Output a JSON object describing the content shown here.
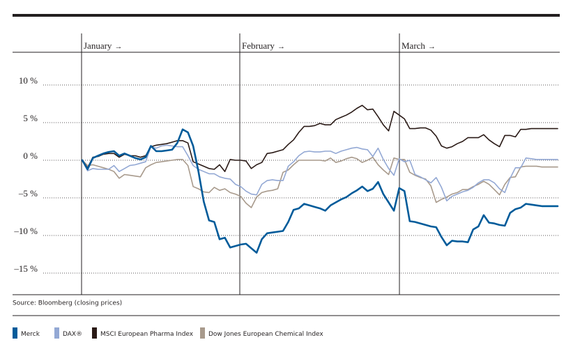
{
  "chart_data": {
    "type": "line",
    "source": "Source: Bloomberg (closing prices)",
    "months": [
      "January",
      "February",
      "March"
    ],
    "month_arrow": "→",
    "y_ticks": [
      {
        "value": 10,
        "label": "10 %"
      },
      {
        "value": 5,
        "label": "5 %"
      },
      {
        "value": 0,
        "label": "0 %"
      },
      {
        "value": -5,
        "label": "–5 %"
      },
      {
        "value": -10,
        "label": "–10 %"
      },
      {
        "value": -15,
        "label": "–15 %"
      }
    ],
    "ylim": [
      -17.5,
      14
    ],
    "x_days": 91,
    "month_starts": [
      0,
      31,
      59
    ],
    "grid": "dotted-horizontal",
    "legend_position": "bottom",
    "series": [
      {
        "name": "Merck",
        "color": "#005b9a",
        "width": 2.6,
        "x": [
          0,
          1,
          2,
          3,
          4,
          5,
          6,
          7,
          8,
          9,
          10,
          11,
          12,
          13,
          14,
          15,
          16,
          17,
          18,
          19,
          20,
          21,
          22,
          23,
          24,
          25,
          26,
          27,
          28,
          29,
          30,
          31,
          32,
          33,
          34,
          35,
          36,
          37,
          38,
          39,
          40,
          41,
          42,
          43,
          44,
          45,
          46,
          47,
          48,
          49,
          50,
          51,
          52,
          53,
          54,
          55,
          56,
          57,
          58,
          59,
          60,
          61,
          62,
          63,
          64,
          65,
          66,
          67,
          68,
          69,
          70,
          71,
          72,
          73,
          74,
          75,
          76,
          77,
          78,
          79,
          80,
          81,
          82,
          83,
          84,
          85,
          86,
          87,
          88,
          89,
          90
        ],
        "values": [
          0,
          -1.2,
          0.3,
          0.6,
          0.9,
          1.1,
          1.2,
          0.6,
          0.9,
          0.6,
          0.3,
          0.1,
          0.4,
          1.9,
          1.2,
          1.2,
          1.3,
          1.4,
          2.3,
          4.1,
          3.7,
          1.9,
          -1.5,
          -5.5,
          -8,
          -8.2,
          -10.5,
          -10.3,
          -11.6,
          -11.4,
          -11.2,
          -11.1,
          -11.7,
          -12.3,
          -10.5,
          -9.7,
          -9.6,
          -9.5,
          -9.4,
          -8.2,
          -6.6,
          -6.4,
          -5.8,
          -6,
          -6.2,
          -6.4,
          -6.7,
          -6,
          -5.6,
          -5.2,
          -4.9,
          -4.4,
          -4,
          -3.5,
          -4.1,
          -3.8,
          -2.9,
          -4.5,
          -5.6,
          -6.7,
          -3.7,
          -4.1,
          -8.1,
          -8.2,
          -8.4,
          -8.6,
          -8.8,
          -8.9,
          -10.2,
          -11.3,
          -10.7,
          -10.8,
          -10.8,
          -10.9,
          -9.2,
          -8.8,
          -7.3,
          -8.3,
          -8.4,
          -8.6,
          -8.7,
          -7,
          -6.5,
          -6.3,
          -5.8,
          -5.9,
          -6,
          -6.1,
          -6.1,
          -6.1,
          -6.1
        ]
      },
      {
        "name": "DAX®",
        "color": "#93a8d4",
        "width": 1.6,
        "x": [
          0,
          1,
          2,
          3,
          4,
          5,
          6,
          7,
          8,
          9,
          10,
          11,
          12,
          13,
          14,
          15,
          16,
          17,
          18,
          19,
          20,
          21,
          22,
          23,
          24,
          25,
          26,
          27,
          28,
          29,
          30,
          31,
          32,
          33,
          34,
          35,
          36,
          37,
          38,
          39,
          40,
          41,
          42,
          43,
          44,
          45,
          46,
          47,
          48,
          49,
          50,
          51,
          52,
          53,
          54,
          55,
          56,
          57,
          58,
          59,
          60,
          61,
          62,
          63,
          64,
          65,
          66,
          67,
          68,
          69,
          70,
          71,
          72,
          73,
          74,
          75,
          76,
          77,
          78,
          79,
          80,
          81,
          82,
          83,
          84,
          85,
          86,
          87,
          88,
          89,
          90
        ],
        "values": [
          0,
          -1.4,
          -1.1,
          -1.2,
          -1.2,
          -1.2,
          -0.7,
          -1.5,
          -1.1,
          -0.7,
          -0.6,
          -0.4,
          -0.2,
          1.8,
          1.6,
          1.9,
          2,
          1.9,
          1.8,
          1.8,
          0.6,
          -0.7,
          -1.2,
          -1.5,
          -1.8,
          -1.8,
          -2.2,
          -2.4,
          -2.5,
          -3.2,
          -3.5,
          -4.1,
          -4.5,
          -4.6,
          -3.2,
          -2.7,
          -2.6,
          -2.7,
          -2.7,
          -0.8,
          -0.2,
          0.6,
          1.1,
          1.2,
          1.1,
          1.1,
          1.2,
          1.2,
          0.9,
          1.2,
          1.4,
          1.6,
          1.7,
          1.5,
          1.4,
          0.5,
          1.6,
          0.1,
          -1.1,
          -2,
          0.2,
          -0.2,
          0,
          -1.9,
          -2.2,
          -2.6,
          -3,
          -2.3,
          -3.6,
          -5.4,
          -4.8,
          -4.5,
          -4.2,
          -4,
          -3.6,
          -3,
          -2.6,
          -2.6,
          -3,
          -3.8,
          -4.3,
          -2.4,
          -1,
          -1,
          0.3,
          0.2,
          0.1,
          0.1,
          0.1,
          0.1,
          0.1
        ]
      },
      {
        "name": "MSCI European Pharma Index",
        "color": "#2a1a16",
        "width": 1.6,
        "x": [
          0,
          1,
          2,
          3,
          4,
          5,
          6,
          7,
          8,
          9,
          10,
          11,
          12,
          13,
          14,
          15,
          16,
          17,
          18,
          19,
          20,
          21,
          22,
          23,
          24,
          25,
          26,
          27,
          28,
          29,
          30,
          31,
          32,
          33,
          34,
          35,
          36,
          37,
          38,
          39,
          40,
          41,
          42,
          43,
          44,
          45,
          46,
          47,
          48,
          49,
          50,
          51,
          52,
          53,
          54,
          55,
          56,
          57,
          58,
          59,
          60,
          61,
          62,
          63,
          64,
          65,
          66,
          67,
          68,
          69,
          70,
          71,
          72,
          73,
          74,
          75,
          76,
          77,
          78,
          79,
          80,
          81,
          82,
          83,
          84,
          85,
          86,
          87,
          88,
          89,
          90
        ],
        "values": [
          0,
          -1,
          0.4,
          0.5,
          0.8,
          0.9,
          0.9,
          0.4,
          0.8,
          0.6,
          0.6,
          0.4,
          0.6,
          1.8,
          2,
          2.1,
          2.2,
          2.4,
          2.6,
          2.6,
          2.3,
          -0.2,
          -0.5,
          -0.8,
          -1.1,
          -1.2,
          -0.6,
          -1.5,
          0.1,
          0,
          0,
          -0.1,
          -1.1,
          -0.6,
          -0.3,
          0.9,
          1,
          1.2,
          1.4,
          2.1,
          2.7,
          3.7,
          4.5,
          4.5,
          4.6,
          4.9,
          4.7,
          4.7,
          5.4,
          5.7,
          6,
          6.4,
          6.9,
          7.3,
          6.7,
          6.8,
          5.8,
          4.7,
          3.9,
          6.5,
          6,
          5.5,
          4.2,
          4.2,
          4.3,
          4.3,
          4,
          3.2,
          1.9,
          1.6,
          1.8,
          2.2,
          2.5,
          3,
          3,
          3,
          3.4,
          2.7,
          2.2,
          1.8,
          3.3,
          3.3,
          3.1,
          4.1,
          4.1,
          4.2,
          4.2,
          4.2,
          4.2,
          4.2,
          4.2
        ]
      },
      {
        "name": "Dow Jones European Chemical Index",
        "color": "#a89a8c",
        "width": 1.6,
        "x": [
          0,
          1,
          2,
          3,
          4,
          5,
          6,
          7,
          8,
          9,
          10,
          11,
          12,
          13,
          14,
          15,
          16,
          17,
          18,
          19,
          20,
          21,
          22,
          23,
          24,
          25,
          26,
          27,
          28,
          29,
          30,
          31,
          32,
          33,
          34,
          35,
          36,
          37,
          38,
          39,
          40,
          41,
          42,
          43,
          44,
          45,
          46,
          47,
          48,
          49,
          50,
          51,
          52,
          53,
          54,
          55,
          56,
          57,
          58,
          59,
          60,
          61,
          62,
          63,
          64,
          65,
          66,
          67,
          68,
          69,
          70,
          71,
          72,
          73,
          74,
          75,
          76,
          77,
          78,
          79,
          80,
          81,
          82,
          83,
          84,
          85,
          86,
          87,
          88,
          89,
          90
        ],
        "values": [
          0,
          -0.7,
          -0.6,
          -0.8,
          -1,
          -1.2,
          -1.5,
          -2.4,
          -1.9,
          -2,
          -2.1,
          -2.2,
          -1,
          -0.6,
          -0.3,
          -0.2,
          -0.1,
          0,
          0.1,
          0.1,
          -0.7,
          -3.5,
          -3.8,
          -4.2,
          -4.3,
          -3.6,
          -4,
          -3.8,
          -4.3,
          -4.5,
          -4.8,
          -5.7,
          -6.3,
          -4.9,
          -4.3,
          -4.1,
          -4,
          -3.8,
          -1.6,
          -1.3,
          -0.6,
          0,
          0,
          0,
          0,
          0,
          -0.1,
          0.3,
          -0.3,
          -0.1,
          0.2,
          0.4,
          0.2,
          -0.3,
          0,
          0.4,
          -0.6,
          -1.3,
          -1.9,
          0.3,
          0.1,
          0.1,
          -1.6,
          -2,
          -2.3,
          -2.5,
          -3.4,
          -5.6,
          -5.2,
          -4.9,
          -4.5,
          -4.3,
          -3.9,
          -3.9,
          -3.5,
          -3.2,
          -2.8,
          -3.2,
          -3.9,
          -4.6,
          -3.2,
          -2.3,
          -2.2,
          -0.9,
          -0.8,
          -0.8,
          -0.8,
          -0.9,
          -0.9,
          -0.9,
          -0.9
        ]
      }
    ]
  }
}
